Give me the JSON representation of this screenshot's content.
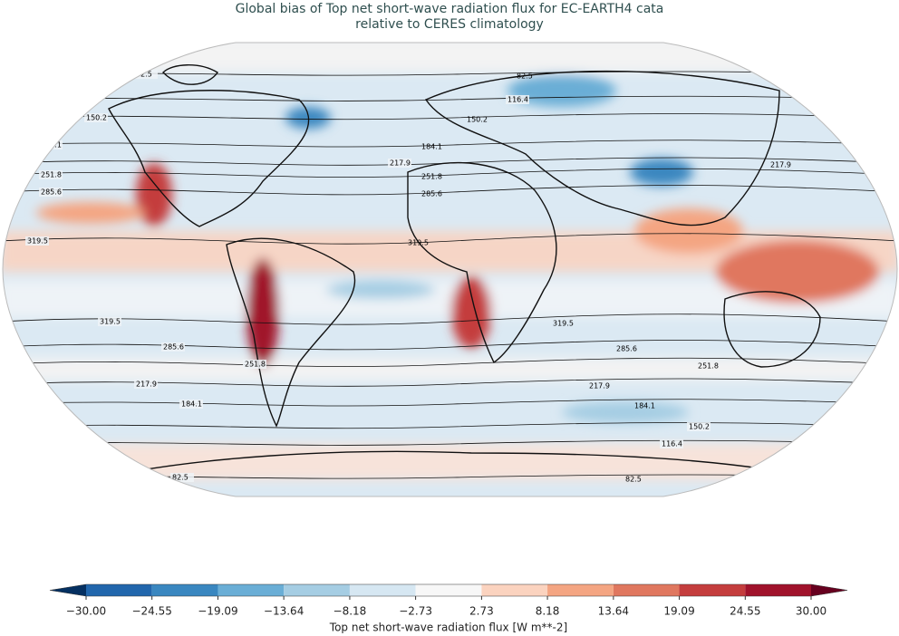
{
  "title": [
    "Global bias of Top net short-wave radiation flux for EC-EARTH4 cata",
    "relative to CERES climatology"
  ],
  "map": {
    "contour_levels": [
      82.5,
      116.4,
      150.2,
      184.1,
      217.9,
      251.8,
      285.6,
      319.5
    ]
  },
  "colorbar": {
    "label": "Top net short-wave radiation flux [W m**-2]",
    "ticks": [
      {
        "value": -30,
        "label": "−30.00"
      },
      {
        "value": -24.55,
        "label": "−24.55"
      },
      {
        "value": -19.09,
        "label": "−19.09"
      },
      {
        "value": -13.64,
        "label": "−13.64"
      },
      {
        "value": -8.18,
        "label": "−8.18"
      },
      {
        "value": -2.73,
        "label": "−2.73"
      },
      {
        "value": 2.73,
        "label": "2.73"
      },
      {
        "value": 8.18,
        "label": "8.18"
      },
      {
        "value": 13.64,
        "label": "13.64"
      },
      {
        "value": 19.09,
        "label": "19.09"
      },
      {
        "value": 24.55,
        "label": "24.55"
      },
      {
        "value": 30,
        "label": "30.00"
      }
    ],
    "colors": [
      "#2166ac",
      "#3a87c0",
      "#6aaed6",
      "#a5cde3",
      "#d6e7f2",
      "#f7f7f7",
      "#fbd3bf",
      "#f4a582",
      "#e0775f",
      "#c43d3d",
      "#a0122b"
    ],
    "extend_colors": [
      "#053061",
      "#67001f"
    ]
  }
}
